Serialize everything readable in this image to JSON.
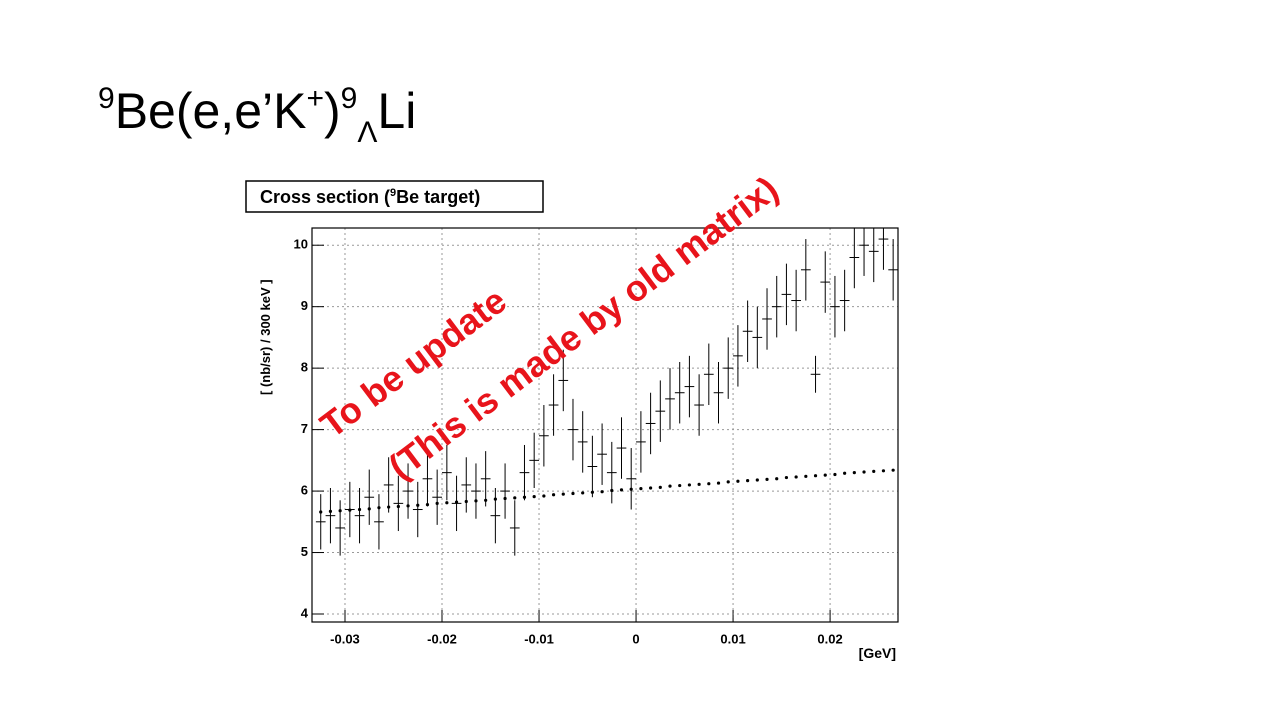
{
  "slide": {
    "title": {
      "mass1": "9",
      "a": "Be(e,e’K",
      "charge": "+",
      "b": ")",
      "mass2": "9",
      "sub": "Λ",
      "c": "Li"
    }
  },
  "chart_data": {
    "type": "errorbar",
    "title": {
      "a": "Cross section (",
      "sup": "9",
      "b": "Be target)"
    },
    "xlabel": "[GeV]",
    "ylabel": "[ (nb/sr) / 300 keV ]",
    "xlim": [
      -0.0334,
      0.027
    ],
    "ylim": [
      3.87,
      10.28
    ],
    "xticks": [
      -0.03,
      -0.02,
      -0.01,
      0,
      0.01,
      0.02
    ],
    "yticks": [
      4,
      5,
      6,
      7,
      8,
      9,
      10
    ],
    "grid": true,
    "x": [
      -0.0325,
      -0.0315,
      -0.0305,
      -0.0295,
      -0.0285,
      -0.0275,
      -0.0265,
      -0.0255,
      -0.0245,
      -0.0235,
      -0.0225,
      -0.0215,
      -0.0205,
      -0.0195,
      -0.0185,
      -0.0175,
      -0.0165,
      -0.0155,
      -0.0145,
      -0.0135,
      -0.0125,
      -0.0115,
      -0.0105,
      -0.0095,
      -0.0085,
      -0.0075,
      -0.0065,
      -0.0055,
      -0.0045,
      -0.0035,
      -0.0025,
      -0.0015,
      -0.0005,
      0.0005,
      0.0015,
      0.0025,
      0.0035,
      0.0045,
      0.0055,
      0.0065,
      0.0075,
      0.0085,
      0.0095,
      0.0105,
      0.0115,
      0.0125,
      0.0135,
      0.0145,
      0.0155,
      0.0165,
      0.0175,
      0.0185,
      0.0195,
      0.0205,
      0.0215,
      0.0225,
      0.0235,
      0.0245,
      0.0255,
      0.0265
    ],
    "series": [
      {
        "color": "#000000",
        "values": [
          5.5,
          5.6,
          5.4,
          5.7,
          5.6,
          5.9,
          5.5,
          6.1,
          5.8,
          6.0,
          5.7,
          6.2,
          5.9,
          6.3,
          5.8,
          6.1,
          6.0,
          6.2,
          5.6,
          6.0,
          5.4,
          6.3,
          6.5,
          6.9,
          7.4,
          7.8,
          7.0,
          6.8,
          6.4,
          6.6,
          6.3,
          6.7,
          6.2,
          6.8,
          7.1,
          7.3,
          7.5,
          7.6,
          7.7,
          7.4,
          7.9,
          7.6,
          8.0,
          8.2,
          8.6,
          8.5,
          8.8,
          9.0,
          9.2,
          9.1,
          9.6,
          7.9,
          9.4,
          9.0,
          9.1,
          9.8,
          10.0,
          9.9,
          10.1,
          9.6
        ],
        "errors": [
          0.45,
          0.45,
          0.45,
          0.45,
          0.45,
          0.45,
          0.45,
          0.45,
          0.45,
          0.45,
          0.45,
          0.45,
          0.45,
          0.45,
          0.45,
          0.45,
          0.45,
          0.45,
          0.45,
          0.45,
          0.45,
          0.45,
          0.45,
          0.5,
          0.5,
          0.5,
          0.5,
          0.5,
          0.5,
          0.5,
          0.5,
          0.5,
          0.5,
          0.5,
          0.5,
          0.5,
          0.5,
          0.5,
          0.5,
          0.5,
          0.5,
          0.5,
          0.5,
          0.5,
          0.5,
          0.5,
          0.5,
          0.5,
          0.5,
          0.5,
          0.5,
          0.3,
          0.5,
          0.5,
          0.5,
          0.5,
          0.5,
          0.5,
          0.5,
          0.5
        ]
      },
      {
        "color": "#000000",
        "style": "dots",
        "values": [
          5.66,
          5.67,
          5.68,
          5.69,
          5.7,
          5.71,
          5.73,
          5.74,
          5.75,
          5.76,
          5.77,
          5.78,
          5.8,
          5.81,
          5.82,
          5.83,
          5.84,
          5.85,
          5.87,
          5.88,
          5.89,
          5.9,
          5.91,
          5.92,
          5.94,
          5.95,
          5.96,
          5.97,
          5.98,
          5.99,
          6.01,
          6.02,
          6.03,
          6.04,
          6.05,
          6.06,
          6.08,
          6.09,
          6.1,
          6.11,
          6.12,
          6.13,
          6.15,
          6.16,
          6.17,
          6.18,
          6.19,
          6.2,
          6.22,
          6.23,
          6.24,
          6.25,
          6.26,
          6.27,
          6.29,
          6.3,
          6.31,
          6.32,
          6.33,
          6.34
        ]
      }
    ],
    "annotations": [
      {
        "text": "To be update",
        "color": "#e8141b"
      },
      {
        "text": "(This is made by old matrix)",
        "color": "#e8141b"
      }
    ]
  }
}
